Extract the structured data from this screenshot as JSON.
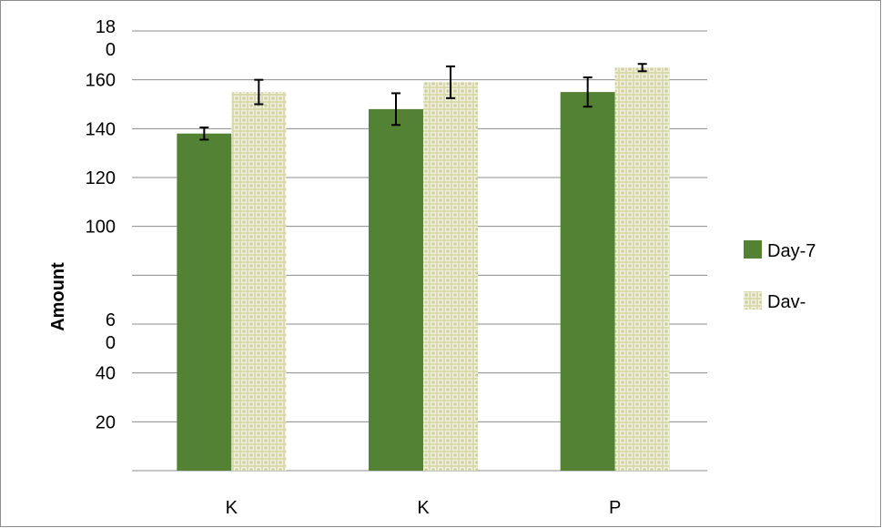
{
  "chart_data": {
    "type": "bar",
    "title": "",
    "xlabel": "",
    "ylabel": "Amount",
    "ylim": [
      0,
      180
    ],
    "grid": true,
    "legend": "right",
    "y_tick_labels": [
      {
        "value": 180,
        "lines": [
          "18",
          "0"
        ]
      },
      {
        "value": 160,
        "lines": [
          "160"
        ]
      },
      {
        "value": 140,
        "lines": [
          "140"
        ]
      },
      {
        "value": 120,
        "lines": [
          "120"
        ]
      },
      {
        "value": 100,
        "lines": [
          "100"
        ]
      },
      {
        "value": 60,
        "lines": [
          "6",
          "0"
        ]
      },
      {
        "value": 40,
        "lines": [
          "40"
        ]
      },
      {
        "value": 20,
        "lines": [
          "20"
        ]
      }
    ],
    "categories": [
      "K",
      "K",
      "P"
    ],
    "series": [
      {
        "name": "Day-7",
        "color": "#548235",
        "pattern": "solid",
        "values": [
          138,
          148,
          155
        ],
        "errors": [
          2.5,
          6.5,
          6.0
        ]
      },
      {
        "name": "Dav-",
        "color": "#e6e6c3",
        "pattern": "waffle",
        "values": [
          155,
          159,
          165
        ],
        "errors": [
          5.0,
          6.5,
          1.5
        ]
      }
    ]
  }
}
